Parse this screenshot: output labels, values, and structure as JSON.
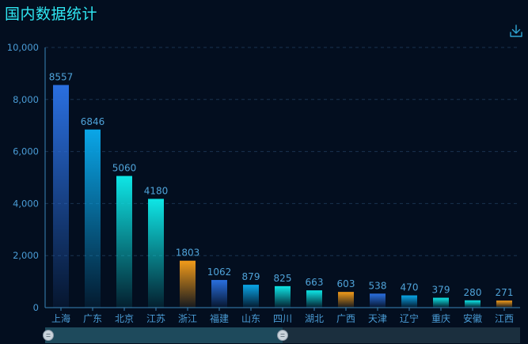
{
  "header": {
    "title": "国内数据统计"
  },
  "toolbox": {
    "download_icon": "download-icon"
  },
  "colors": {
    "background": "#030e1f",
    "title": "#2fe7f2",
    "axis": "#3a85b8",
    "axis_label": "#4a9cd6",
    "value_label": "#4fa3d9",
    "gridline": "#1a3350",
    "blue": "#2a6fe0",
    "sky": "#0aa6e8",
    "cyan": "#0ee6e6",
    "orange": "#f29b1a",
    "slider_track": "#1b2f3e",
    "slider_fill": "#1e4a5c"
  },
  "chart_data": {
    "type": "bar",
    "categories": [
      "上海",
      "广东",
      "北京",
      "江苏",
      "浙江",
      "福建",
      "山东",
      "四川",
      "湖北",
      "广西",
      "天津",
      "辽宁",
      "重庆",
      "安徽",
      "江西"
    ],
    "values": [
      8557,
      6846,
      5060,
      4180,
      1803,
      1062,
      879,
      825,
      663,
      603,
      538,
      470,
      379,
      280,
      271
    ],
    "bar_color_cycle": [
      "blue",
      "sky",
      "cyan",
      "cyan",
      "orange"
    ],
    "ylim": [
      0,
      10000
    ],
    "yticks": [
      0,
      2000,
      4000,
      6000,
      8000,
      10000
    ],
    "ytick_labels": [
      "0",
      "2,000",
      "4,000",
      "6,000",
      "8,000",
      "10,000"
    ],
    "grid": true,
    "legend": "none",
    "data_zoom": {
      "start": 0,
      "end": 0.5
    }
  }
}
